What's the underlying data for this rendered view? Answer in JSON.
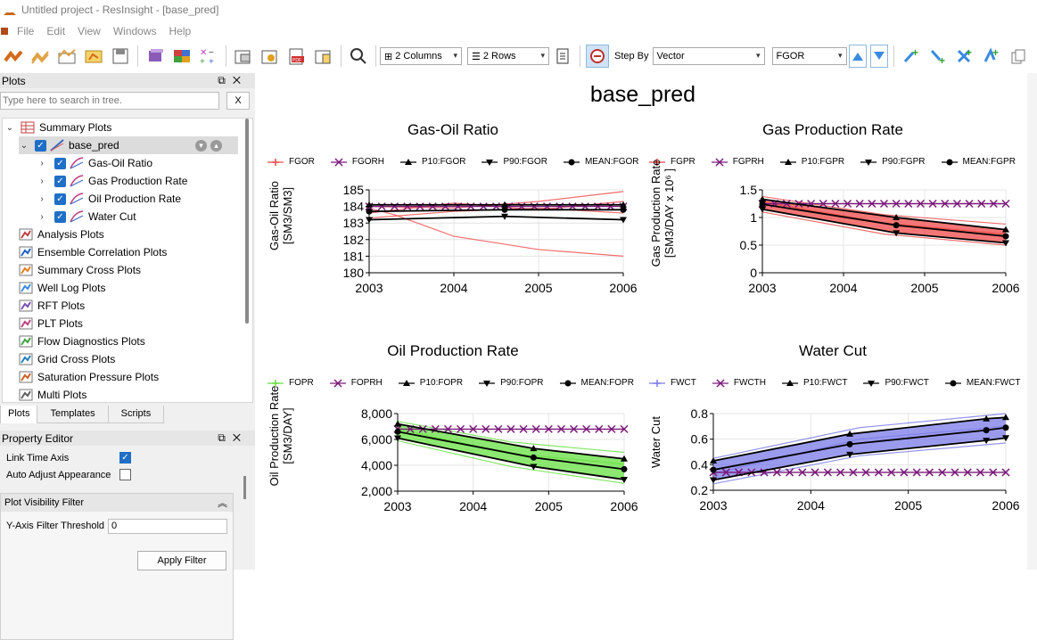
{
  "window": {
    "title": "Untitled project - ResInsight - [base_pred]"
  },
  "menu": [
    "File",
    "Edit",
    "View",
    "Windows",
    "Help"
  ],
  "toolbar": {
    "columns": "2 Columns",
    "rows": "2 Rows",
    "step_by_label": "Step By",
    "step_by_value": "Vector",
    "vector_value": "FGOR"
  },
  "plots_panel": {
    "title": "Plots",
    "search_placeholder": "Type here to search in tree.",
    "clear": "X",
    "tree": {
      "summary_plots": "Summary Plots",
      "base_pred": "base_pred",
      "children": [
        "Gas-Oil Ratio",
        "Gas Production Rate",
        "Oil Production Rate",
        "Water Cut"
      ],
      "others": [
        "Analysis Plots",
        "Ensemble Correlation Plots",
        "Summary Cross Plots",
        "Well Log Plots",
        "RFT Plots",
        "PLT Plots",
        "Flow Diagnostics Plots",
        "Grid Cross Plots",
        "Saturation Pressure Plots",
        "Multi Plots"
      ]
    },
    "tabs": [
      "Plots",
      "Templates",
      "Scripts"
    ]
  },
  "property_editor": {
    "title": "Property Editor",
    "link_time_axis": "Link Time Axis",
    "auto_adjust": "Auto Adjust Appearance",
    "filter_title": "Plot Visibility Filter",
    "threshold_label": "Y-Axis Filter Threshold",
    "threshold_value": "0",
    "apply": "Apply Filter"
  },
  "main": {
    "title": "base_pred"
  },
  "chart_data": [
    {
      "type": "line",
      "title": "Gas-Oil Ratio",
      "ylabel": "Gas-Oil Ratio [SM3/SM3]",
      "ylim": [
        180,
        185
      ],
      "yticks": [
        "185",
        "184",
        "183",
        "182",
        "181",
        "180"
      ],
      "xticks": [
        "2003",
        "2004",
        "2005",
        "2006"
      ],
      "legend": [
        "FGOR",
        "FGORH",
        "P10:FGOR",
        "P90:FGOR",
        "MEAN:FGOR"
      ],
      "colors": {
        "sim": "#f04848",
        "hist": "#7a1a7a",
        "stat": "#000000"
      },
      "series": [
        {
          "name": "FGORH",
          "x": [
            2003,
            2006
          ],
          "y": [
            184,
            184
          ]
        },
        {
          "name": "P10:FGOR",
          "x": [
            2003,
            2004.6,
            2006
          ],
          "y": [
            184.1,
            184.1,
            184.1
          ]
        },
        {
          "name": "P90:FGOR",
          "x": [
            2003,
            2004.6,
            2006
          ],
          "y": [
            183.2,
            183.4,
            183.2
          ]
        },
        {
          "name": "MEAN:FGOR",
          "x": [
            2003,
            2004.6,
            2006
          ],
          "y": [
            183.7,
            183.8,
            183.8
          ]
        }
      ],
      "members": [
        {
          "x": [
            2003,
            2003.3,
            2004,
            2005,
            2006
          ],
          "y": [
            183.9,
            183.5,
            182.2,
            181.4,
            181.0
          ]
        },
        {
          "x": [
            2003,
            2004,
            2005,
            2006
          ],
          "y": [
            184.0,
            183.9,
            184.3,
            184.9
          ]
        },
        {
          "x": [
            2003,
            2004,
            2005,
            2006
          ],
          "y": [
            183.6,
            184.2,
            183.8,
            184.3
          ]
        },
        {
          "x": [
            2003,
            2004,
            2005,
            2006
          ],
          "y": [
            183.3,
            183.7,
            183.9,
            183.6
          ]
        }
      ]
    },
    {
      "type": "line",
      "title": "Gas Production Rate",
      "ylabel": "Gas Production Rate [SM3/DAY x 10⁶ ]",
      "ylim": [
        0,
        1.5
      ],
      "yticks": [
        "1.5",
        "1",
        "0.5",
        "0"
      ],
      "xticks": [
        "2003",
        "2004",
        "2005",
        "2006"
      ],
      "legend": [
        "FGPR",
        "FGPRH",
        "P10:FGPR",
        "P90:FGPR",
        "MEAN:FGPR"
      ],
      "colors": {
        "sim": "#f04848",
        "hist": "#7a1a7a",
        "stat": "#000000"
      },
      "series": [
        {
          "name": "FGPRH",
          "x": [
            2003,
            2006
          ],
          "y": [
            1.25,
            1.25
          ]
        },
        {
          "name": "P10:FGPR",
          "x": [
            2003,
            2004.65,
            2006
          ],
          "y": [
            1.33,
            1.0,
            0.78
          ]
        },
        {
          "name": "P90:FGPR",
          "x": [
            2003,
            2004.65,
            2006
          ],
          "y": [
            1.15,
            0.72,
            0.54
          ]
        },
        {
          "name": "MEAN:FGPR",
          "x": [
            2003,
            2004.65,
            2006
          ],
          "y": [
            1.24,
            0.86,
            0.66
          ]
        }
      ],
      "members": [
        {
          "x": [
            2003,
            2004.5,
            2006
          ],
          "y": [
            1.38,
            1.05,
            0.88
          ]
        },
        {
          "x": [
            2003,
            2004.5,
            2006
          ],
          "y": [
            1.1,
            0.7,
            0.5
          ]
        },
        {
          "x": [
            2003,
            2004.5,
            2006
          ],
          "y": [
            1.28,
            0.9,
            0.7
          ]
        }
      ]
    },
    {
      "type": "line",
      "title": "Oil Production Rate",
      "ylabel": "Oil Production Rate [SM3/DAY]",
      "ylim": [
        2000,
        8000
      ],
      "yticks": [
        "8,000",
        "6,000",
        "4,000",
        "2,000"
      ],
      "xticks": [
        "2003",
        "2004",
        "2005",
        "2006"
      ],
      "legend": [
        "FOPR",
        "FOPRH",
        "P10:FOPR",
        "P90:FOPR",
        "MEAN:FOPR"
      ],
      "colors": {
        "sim": "#66e040",
        "hist": "#7a1a7a",
        "stat": "#000000"
      },
      "series": [
        {
          "name": "FOPRH",
          "x": [
            2003,
            2006
          ],
          "y": [
            6800,
            6800
          ]
        },
        {
          "name": "P10:FOPR",
          "x": [
            2003,
            2004.8,
            2006
          ],
          "y": [
            7200,
            5300,
            4500
          ]
        },
        {
          "name": "P90:FOPR",
          "x": [
            2003,
            2004.8,
            2006
          ],
          "y": [
            6100,
            3900,
            2900
          ]
        },
        {
          "name": "MEAN:FOPR",
          "x": [
            2003,
            2004.8,
            2006
          ],
          "y": [
            6600,
            4600,
            3700
          ]
        }
      ],
      "members": [
        {
          "x": [
            2003,
            2004.5,
            2006
          ],
          "y": [
            7400,
            5800,
            5000
          ]
        },
        {
          "x": [
            2003,
            2004.5,
            2006
          ],
          "y": [
            5900,
            3900,
            2600
          ]
        },
        {
          "x": [
            2003,
            2004.5,
            2006
          ],
          "y": [
            6800,
            4900,
            4100
          ]
        }
      ]
    },
    {
      "type": "line",
      "title": "Water Cut",
      "ylabel": "Water Cut",
      "ylim": [
        0.2,
        0.8
      ],
      "yticks": [
        "0.8",
        "0.6",
        "0.4",
        "0.2"
      ],
      "xticks": [
        "2003",
        "2004",
        "2005",
        "2006"
      ],
      "legend": [
        "FWCT",
        "FWCTH",
        "P10:FWCT",
        "P90:FWCT",
        "MEAN:FWCT"
      ],
      "colors": {
        "sim": "#7a7ae8",
        "hist": "#7a1a7a",
        "stat": "#000000"
      },
      "series": [
        {
          "name": "FWCTH",
          "x": [
            2003,
            2006
          ],
          "y": [
            0.34,
            0.34
          ]
        },
        {
          "name": "P10:FWCT",
          "x": [
            2003,
            2004.4,
            2005.8,
            2006
          ],
          "y": [
            0.43,
            0.64,
            0.76,
            0.77
          ]
        },
        {
          "name": "P90:FWCT",
          "x": [
            2003,
            2004.4,
            2005.8,
            2006
          ],
          "y": [
            0.28,
            0.48,
            0.59,
            0.61
          ]
        },
        {
          "name": "MEAN:FWCT",
          "x": [
            2003,
            2004.4,
            2005.8,
            2006
          ],
          "y": [
            0.36,
            0.56,
            0.67,
            0.69
          ]
        }
      ],
      "members": [
        {
          "x": [
            2003,
            2004.5,
            2006
          ],
          "y": [
            0.45,
            0.69,
            0.8
          ]
        },
        {
          "x": [
            2003,
            2004.5,
            2006
          ],
          "y": [
            0.25,
            0.47,
            0.57
          ]
        },
        {
          "x": [
            2003,
            2004.5,
            2006
          ],
          "y": [
            0.33,
            0.6,
            0.7
          ]
        }
      ]
    }
  ]
}
